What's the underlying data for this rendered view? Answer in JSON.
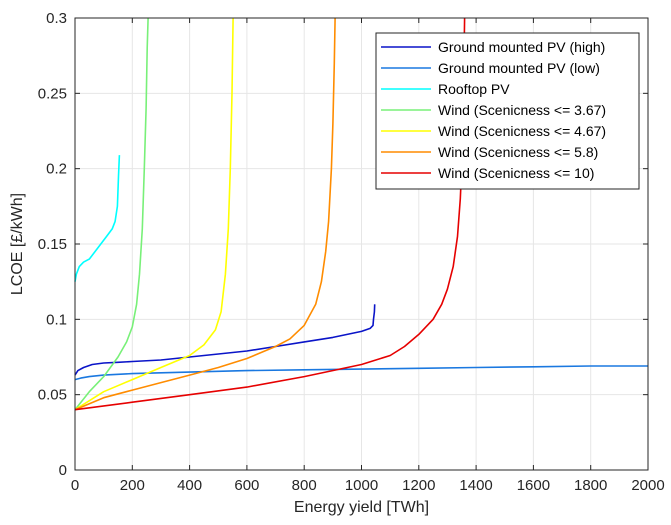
{
  "chart_data": {
    "type": "line",
    "xlabel": "Energy yield [TWh]",
    "ylabel": "LCOE [£/kWh]",
    "xlim": [
      0,
      2000
    ],
    "ylim": [
      0,
      0.3
    ],
    "xticks": [
      0,
      200,
      400,
      600,
      800,
      1000,
      1200,
      1400,
      1600,
      1800,
      2000
    ],
    "yticks": [
      0,
      0.05,
      0.1,
      0.15,
      0.2,
      0.25,
      0.3
    ],
    "xtick_labels": [
      "0",
      "200",
      "400",
      "600",
      "800",
      "1000",
      "1200",
      "1400",
      "1600",
      "1800",
      "2000"
    ],
    "ytick_labels": [
      "0",
      "0.05",
      "0.1",
      "0.15",
      "0.2",
      "0.25",
      "0.3"
    ],
    "grid": true,
    "legend_position": "top-right",
    "series": [
      {
        "name": "Ground mounted PV (high)",
        "color": "#0a14c8",
        "x": [
          0,
          10,
          30,
          60,
          100,
          150,
          200,
          300,
          400,
          500,
          600,
          700,
          800,
          900,
          950,
          1000,
          1030,
          1040,
          1042,
          1045,
          1046
        ],
        "y": [
          0.063,
          0.066,
          0.068,
          0.07,
          0.071,
          0.0715,
          0.072,
          0.073,
          0.075,
          0.077,
          0.079,
          0.082,
          0.085,
          0.088,
          0.09,
          0.092,
          0.094,
          0.096,
          0.1,
          0.105,
          0.11
        ]
      },
      {
        "name": "Ground mounted PV (low)",
        "color": "#1a78e0",
        "x": [
          0,
          20,
          50,
          100,
          200,
          400,
          600,
          800,
          1000,
          1200,
          1400,
          1600,
          1800,
          2000
        ],
        "y": [
          0.06,
          0.061,
          0.062,
          0.063,
          0.064,
          0.065,
          0.066,
          0.0665,
          0.067,
          0.0675,
          0.068,
          0.0685,
          0.069,
          0.069
        ]
      },
      {
        "name": "Rooftop PV",
        "color": "#00ffff",
        "x": [
          0,
          5,
          15,
          30,
          50,
          70,
          90,
          110,
          130,
          140,
          148,
          152,
          155
        ],
        "y": [
          0.125,
          0.13,
          0.135,
          0.138,
          0.14,
          0.145,
          0.15,
          0.155,
          0.16,
          0.165,
          0.175,
          0.195,
          0.209
        ]
      },
      {
        "name": "Wind (Scenicness <= 3.67)",
        "color": "#78f078",
        "x": [
          0,
          50,
          100,
          150,
          180,
          200,
          215,
          225,
          235,
          242,
          248,
          252,
          255
        ],
        "y": [
          0.04,
          0.052,
          0.062,
          0.075,
          0.085,
          0.095,
          0.11,
          0.13,
          0.16,
          0.2,
          0.24,
          0.28,
          0.3
        ]
      },
      {
        "name": "Wind (Scenicness <= 4.67)",
        "color": "#ffff00",
        "x": [
          0,
          100,
          200,
          300,
          400,
          450,
          490,
          510,
          525,
          535,
          542,
          548,
          552
        ],
        "y": [
          0.04,
          0.052,
          0.06,
          0.068,
          0.076,
          0.083,
          0.093,
          0.105,
          0.13,
          0.16,
          0.2,
          0.25,
          0.3
        ]
      },
      {
        "name": "Wind (Scenicness <= 5.8)",
        "color": "#ff8c00",
        "x": [
          0,
          100,
          200,
          300,
          400,
          500,
          600,
          700,
          750,
          800,
          840,
          860,
          875,
          885,
          895,
          900,
          905,
          908
        ],
        "y": [
          0.04,
          0.048,
          0.053,
          0.058,
          0.063,
          0.068,
          0.074,
          0.082,
          0.087,
          0.096,
          0.11,
          0.125,
          0.145,
          0.165,
          0.2,
          0.23,
          0.27,
          0.3
        ]
      },
      {
        "name": "Wind (Scenicness <= 10)",
        "color": "#e60000",
        "x": [
          0,
          200,
          400,
          600,
          800,
          1000,
          1100,
          1150,
          1200,
          1250,
          1280,
          1300,
          1320,
          1335,
          1345,
          1352,
          1356,
          1360
        ],
        "y": [
          0.04,
          0.045,
          0.05,
          0.055,
          0.062,
          0.07,
          0.076,
          0.082,
          0.09,
          0.1,
          0.11,
          0.12,
          0.135,
          0.155,
          0.18,
          0.21,
          0.25,
          0.3
        ]
      }
    ]
  }
}
